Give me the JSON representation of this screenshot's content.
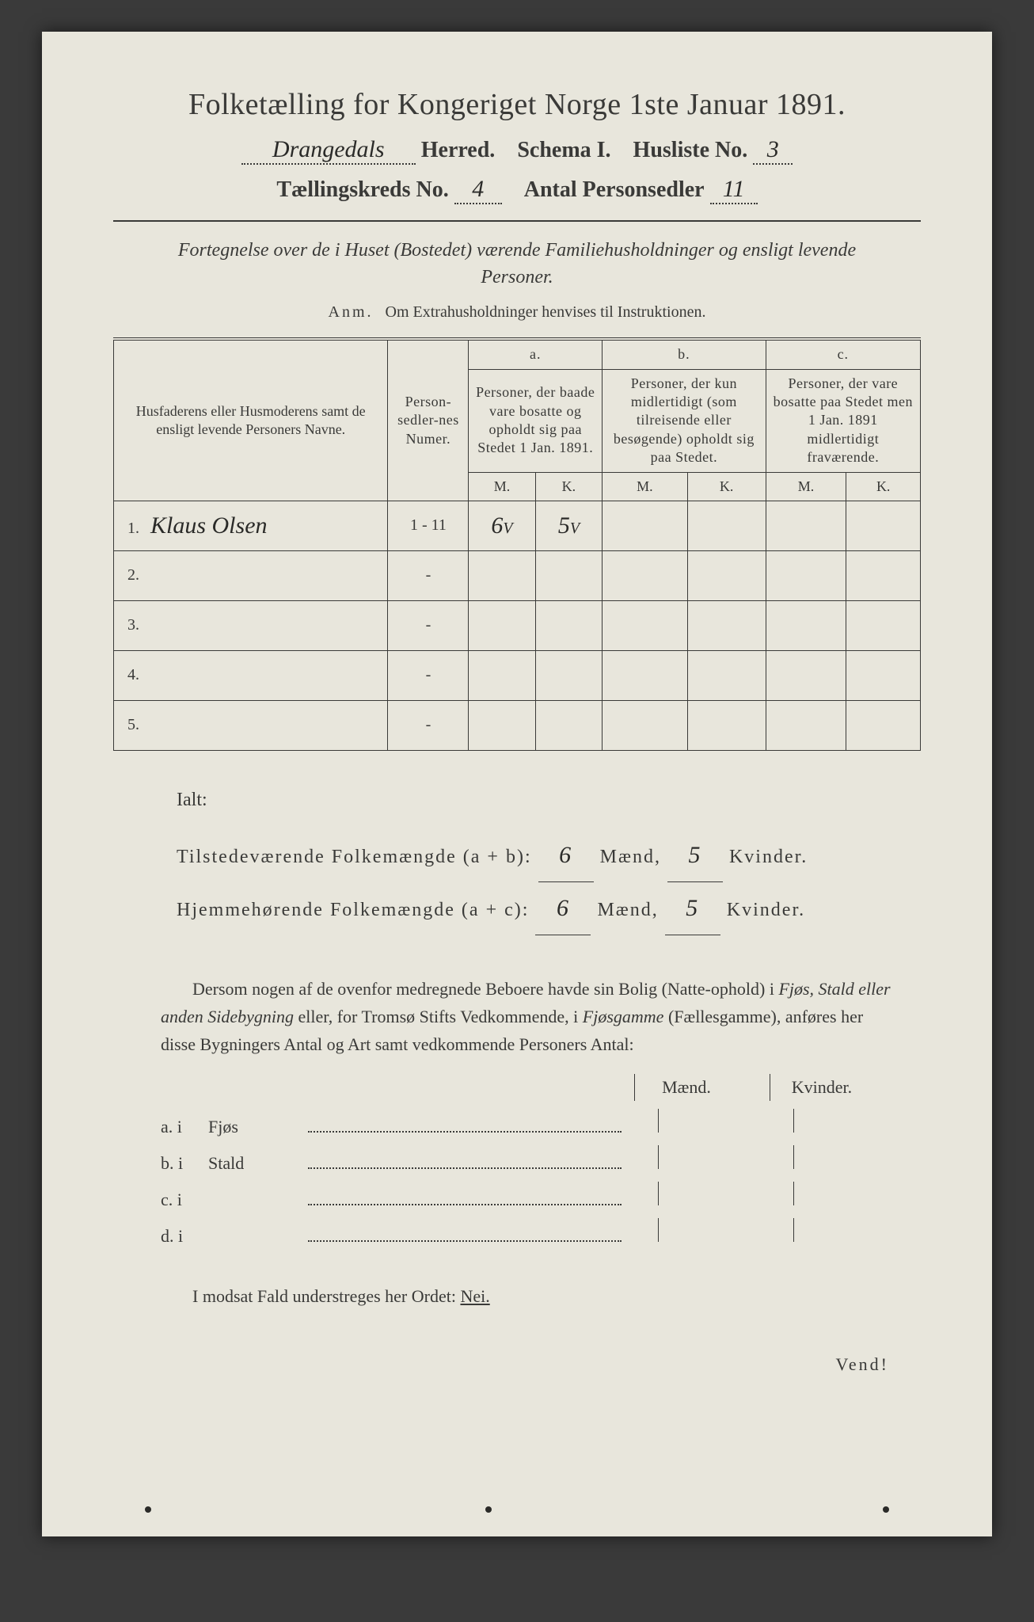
{
  "title": "Folketælling for Kongeriget Norge 1ste Januar 1891.",
  "header": {
    "herred_value": "Drangedals",
    "herred_label": "Herred.",
    "schema_label": "Schema I.",
    "husliste_label": "Husliste No.",
    "husliste_value": "3",
    "kreds_label": "Tællingskreds No.",
    "kreds_value": "4",
    "personsedler_label": "Antal Personsedler",
    "personsedler_value": "11"
  },
  "subtitle": "Fortegnelse over de i Huset (Bostedet) værende Familiehusholdninger og ensligt levende Personer.",
  "anm": {
    "label": "Anm.",
    "text": "Om Extrahusholdninger henvises til Instruktionen."
  },
  "table": {
    "col_name": "Husfaderens eller Husmoderens samt de ensligt levende Personers Navne.",
    "col_person": "Person-sedler-nes Numer.",
    "col_a_label": "a.",
    "col_a": "Personer, der baade vare bosatte og opholdt sig paa Stedet 1 Jan. 1891.",
    "col_b_label": "b.",
    "col_b": "Personer, der kun midlertidigt (som tilreisende eller besøgende) opholdt sig paa Stedet.",
    "col_c_label": "c.",
    "col_c": "Personer, der vare bosatte paa Stedet men 1 Jan. 1891 midlertidigt fraværende.",
    "m": "M.",
    "k": "K.",
    "rows": [
      {
        "n": "1.",
        "name": "Klaus Olsen",
        "person": "1 - 11",
        "a_m": "6",
        "a_k": "5",
        "b_m": "",
        "b_k": "",
        "c_m": "",
        "c_k": ""
      },
      {
        "n": "2.",
        "name": "",
        "person": "-",
        "a_m": "",
        "a_k": "",
        "b_m": "",
        "b_k": "",
        "c_m": "",
        "c_k": ""
      },
      {
        "n": "3.",
        "name": "",
        "person": "-",
        "a_m": "",
        "a_k": "",
        "b_m": "",
        "b_k": "",
        "c_m": "",
        "c_k": ""
      },
      {
        "n": "4.",
        "name": "",
        "person": "-",
        "a_m": "",
        "a_k": "",
        "b_m": "",
        "b_k": "",
        "c_m": "",
        "c_k": ""
      },
      {
        "n": "5.",
        "name": "",
        "person": "-",
        "a_m": "",
        "a_k": "",
        "b_m": "",
        "b_k": "",
        "c_m": "",
        "c_k": ""
      }
    ],
    "check_a_m": "V",
    "check_a_k": "V"
  },
  "totals": {
    "ialt": "Ialt:",
    "line1_label": "Tilstedeværende Folkemængde (a + b):",
    "line2_label": "Hjemmehørende Folkemængde (a + c):",
    "maend": "Mænd,",
    "kvinder": "Kvinder.",
    "l1_m": "6",
    "l1_k": "5",
    "l2_m": "6",
    "l2_k": "5"
  },
  "paragraph": {
    "p1": "Dersom nogen af de ovenfor medregnede Beboere havde sin Bolig (Natte-ophold) i ",
    "e1": "Fjøs, Stald eller anden Sidebygning",
    "p2": " eller, for Tromsø Stifts Vedkommende, i ",
    "e2": "Fjøsgamme",
    "p3": " (Fællesgamme), anføres her disse Bygningers Antal og Art samt vedkommende Personers Antal:"
  },
  "buildings": {
    "header_m": "Mænd.",
    "header_k": "Kvinder.",
    "rows": [
      {
        "lbl": "a.  i",
        "type": "Fjøs"
      },
      {
        "lbl": "b.  i",
        "type": "Stald"
      },
      {
        "lbl": "c.  i",
        "type": ""
      },
      {
        "lbl": "d.  i",
        "type": ""
      }
    ]
  },
  "final": {
    "text": "I modsat Fald understreges her Ordet: ",
    "nei": "Nei."
  },
  "vend": "Vend!",
  "colors": {
    "paper": "#e8e6dc",
    "ink": "#3a3a38",
    "background": "#3a3a3a"
  }
}
